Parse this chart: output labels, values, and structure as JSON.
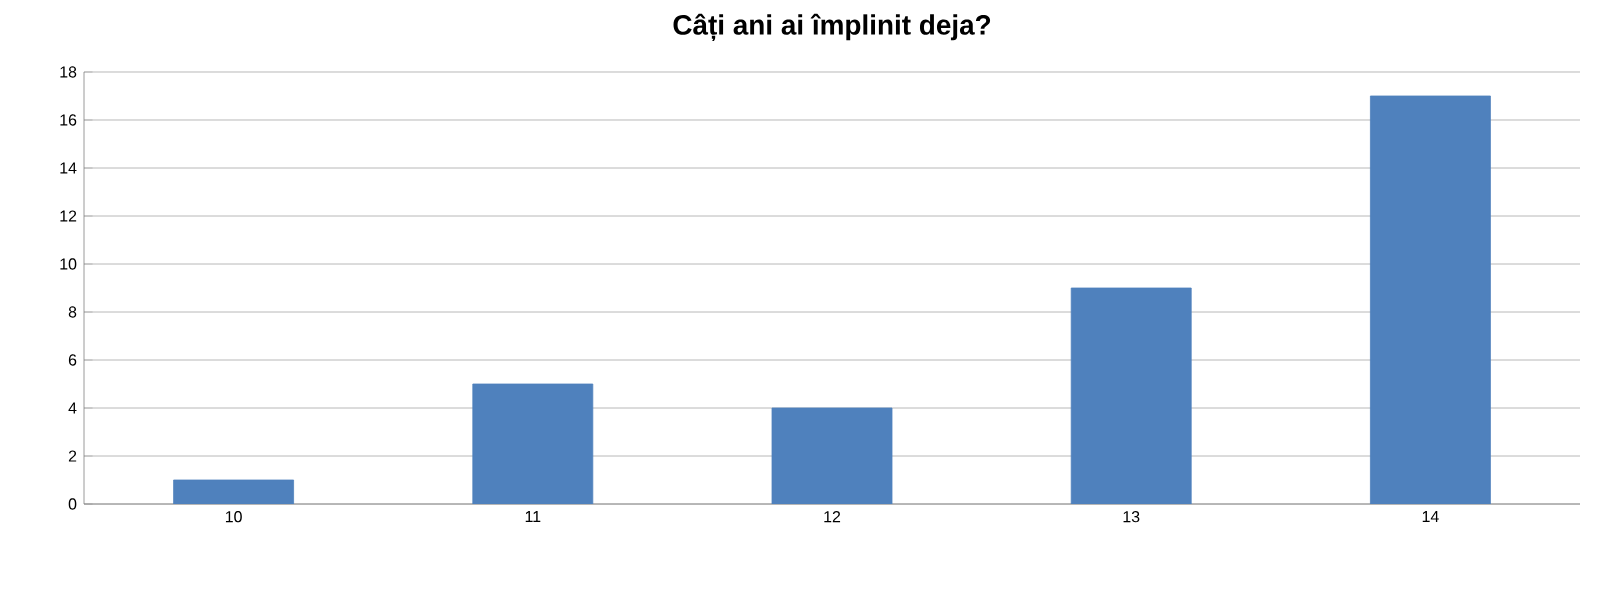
{
  "chart_data": {
    "type": "bar",
    "title": "Câți ani ai împlinit deja?",
    "categories": [
      "10",
      "11",
      "12",
      "13",
      "14"
    ],
    "values": [
      1,
      5,
      4,
      9,
      17
    ],
    "color": "#4f81bd",
    "ylim": [
      0,
      18
    ],
    "yticks": [
      0,
      2,
      4,
      6,
      8,
      10,
      12,
      14,
      16,
      18
    ],
    "grid": "y"
  }
}
